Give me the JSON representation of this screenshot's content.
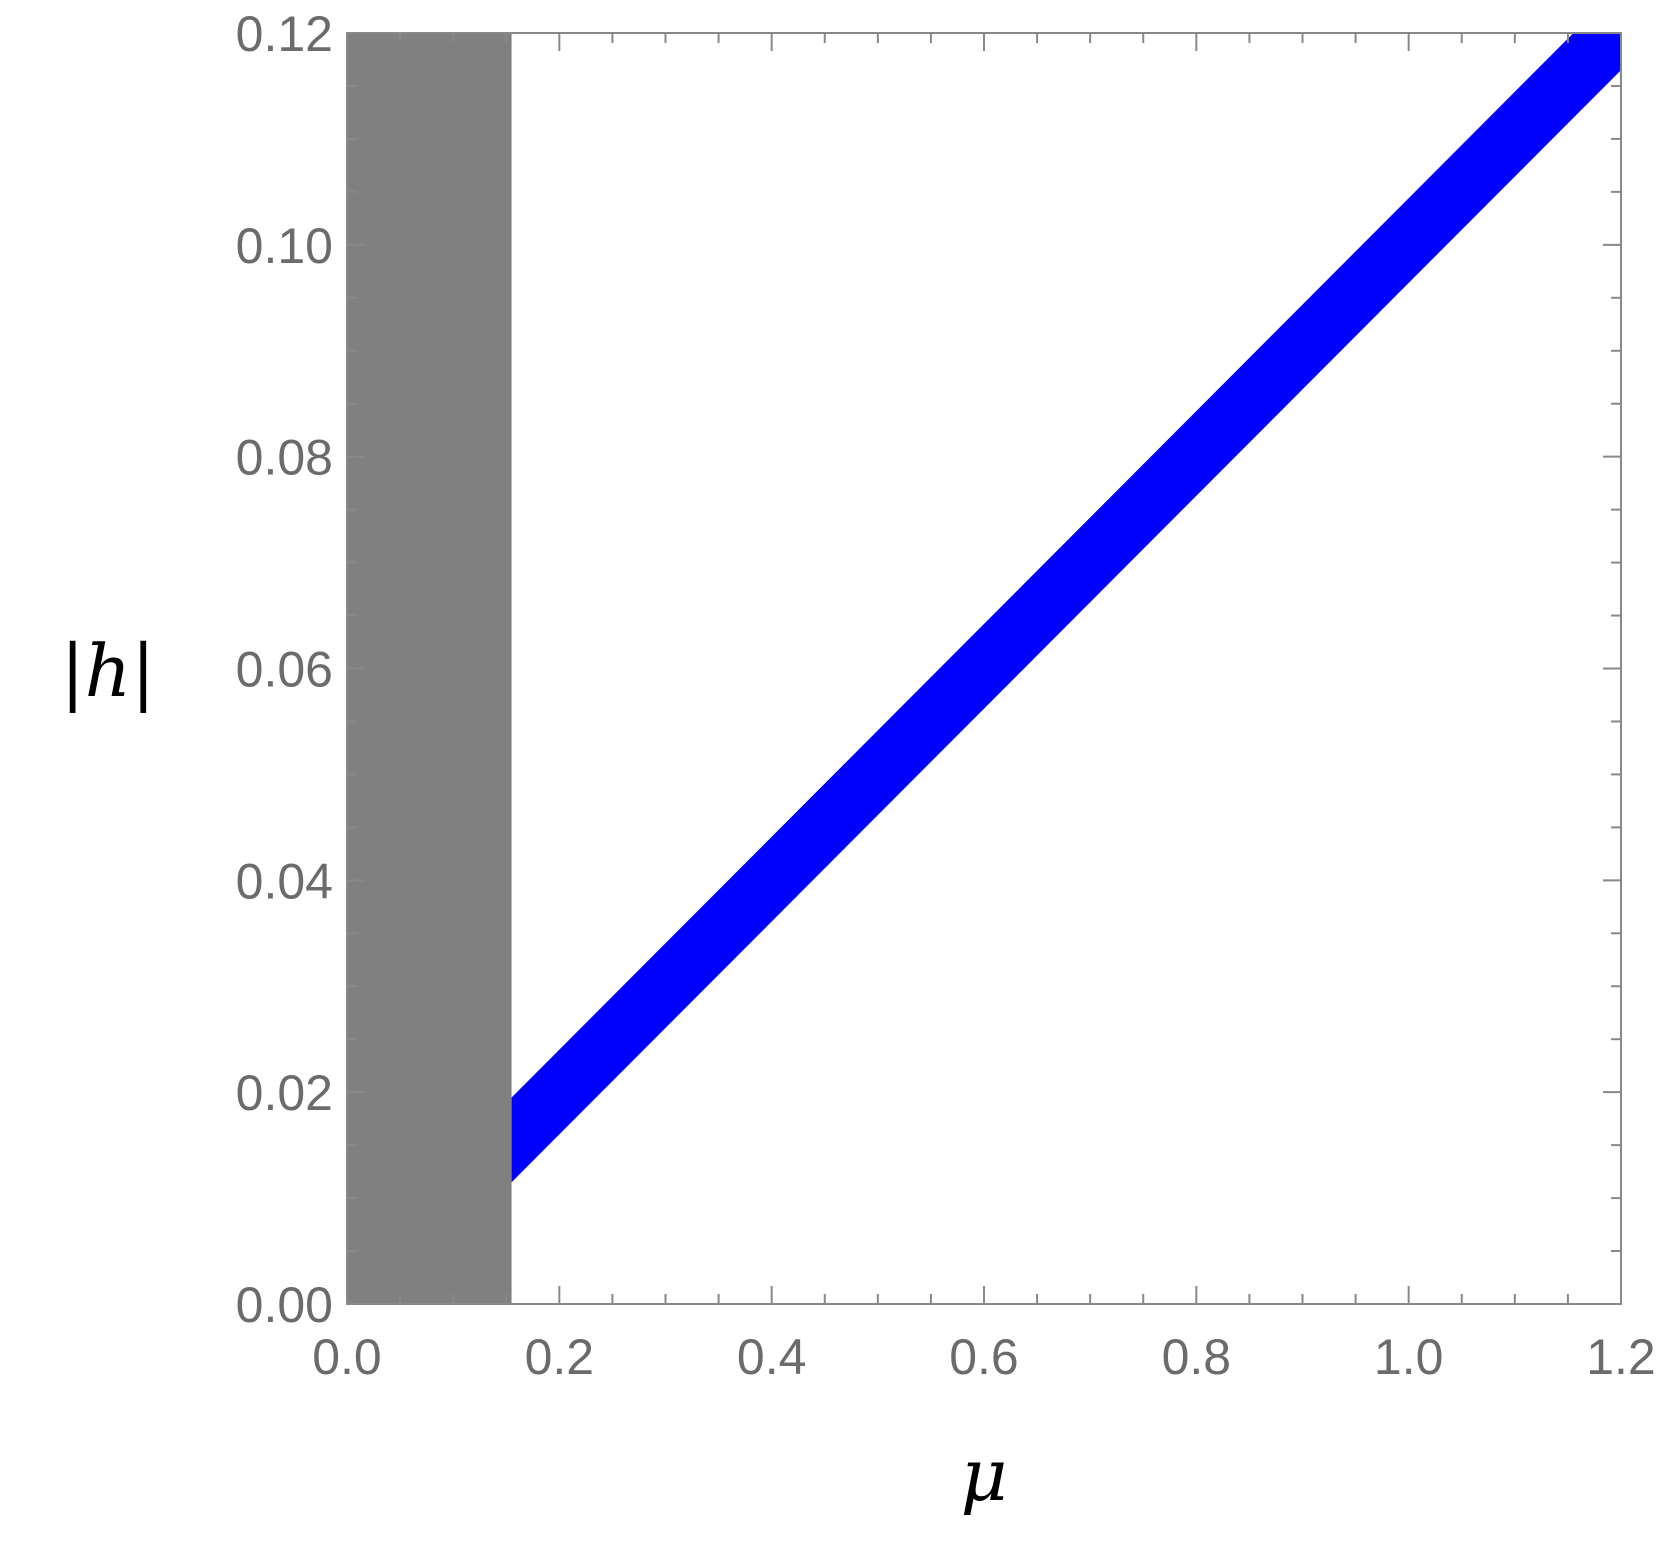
{
  "chart_data": {
    "type": "line",
    "xlabel": "μ",
    "ylabel": "|h|",
    "xlim": [
      0.0,
      1.2
    ],
    "ylim": [
      0.0,
      0.12
    ],
    "x_ticks": [
      "0.0",
      "0.2",
      "0.4",
      "0.6",
      "0.8",
      "1.0",
      "1.2"
    ],
    "y_ticks": [
      "0.00",
      "0.02",
      "0.04",
      "0.06",
      "0.08",
      "0.10",
      "0.12"
    ],
    "x_minor_step": 0.05,
    "y_minor_step": 0.005,
    "excluded_region": {
      "x_range": [
        0.0,
        0.155
      ],
      "y_range": [
        0.0,
        0.12
      ],
      "color": "#808080"
    },
    "series": [
      {
        "color": "#0000ff",
        "band": true,
        "x": [
          0.155,
          1.2
        ],
        "lower": [
          0.0115,
          0.1165
        ],
        "upper": [
          0.0195,
          0.1245
        ]
      }
    ],
    "grid": false
  }
}
